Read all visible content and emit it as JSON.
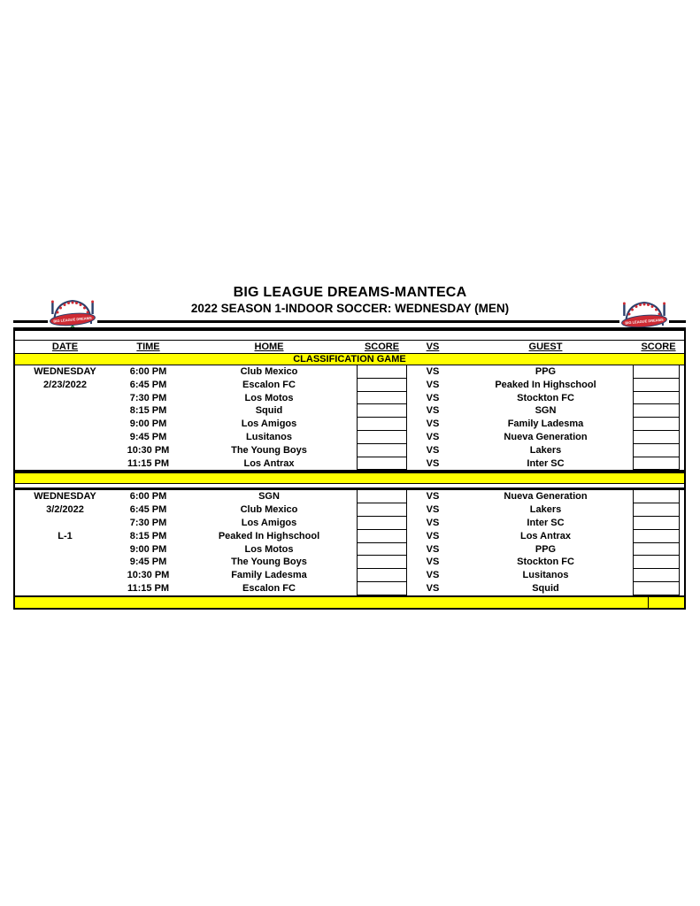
{
  "page": {
    "title": "BIG LEAGUE DREAMS-MANTECA",
    "subtitle": "2022 SEASON 1-INDOOR SOCCER: WEDNESDAY (MEN)"
  },
  "logo": {
    "name": "big-league-dreams-logo",
    "banner_text": "BIG LEAGUE DREAMS"
  },
  "colors": {
    "highlight_yellow": "#FFFF00",
    "border_black": "#000000",
    "logo_red": "#CE2A33",
    "logo_green": "#1E7F3C",
    "logo_navy": "#2B3F6B"
  },
  "table": {
    "columns": [
      "DATE",
      "TIME",
      "HOME",
      "SCORE",
      "VS",
      "GUEST",
      "SCORE"
    ],
    "section_label": "CLASSIFICATION GAME",
    "vs_label": "VS",
    "blocks": [
      {
        "day": "WEDNESDAY",
        "date": "2/23/2022",
        "league": "",
        "games": [
          {
            "time": "6:00 PM",
            "home": "Club Mexico",
            "home_score": "",
            "guest": "PPG",
            "guest_score": ""
          },
          {
            "time": "6:45 PM",
            "home": "Escalon FC",
            "home_score": "",
            "guest": "Peaked In Highschool",
            "guest_score": ""
          },
          {
            "time": "7:30 PM",
            "home": "Los Motos",
            "home_score": "",
            "guest": "Stockton FC",
            "guest_score": ""
          },
          {
            "time": "8:15 PM",
            "home": "Squid",
            "home_score": "",
            "guest": "SGN",
            "guest_score": ""
          },
          {
            "time": "9:00 PM",
            "home": "Los Amigos",
            "home_score": "",
            "guest": "Family Ladesma",
            "guest_score": ""
          },
          {
            "time": "9:45 PM",
            "home": "Lusitanos",
            "home_score": "",
            "guest": "Nueva Generation",
            "guest_score": ""
          },
          {
            "time": "10:30 PM",
            "home": "The Young Boys",
            "home_score": "",
            "guest": "Lakers",
            "guest_score": ""
          },
          {
            "time": "11:15 PM",
            "home": "Los Antrax",
            "home_score": "",
            "guest": "Inter SC",
            "guest_score": ""
          }
        ]
      },
      {
        "day": "WEDNESDAY",
        "date": "3/2/2022",
        "league": "L-1",
        "games": [
          {
            "time": "6:00 PM",
            "home": "SGN",
            "home_score": "",
            "guest": "Nueva Generation",
            "guest_score": ""
          },
          {
            "time": "6:45 PM",
            "home": "Club Mexico",
            "home_score": "",
            "guest": "Lakers",
            "guest_score": ""
          },
          {
            "time": "7:30 PM",
            "home": "Los Amigos",
            "home_score": "",
            "guest": "Inter SC",
            "guest_score": ""
          },
          {
            "time": "8:15 PM",
            "home": "Peaked In Highschool",
            "home_score": "",
            "guest": "Los Antrax",
            "guest_score": ""
          },
          {
            "time": "9:00 PM",
            "home": "Los Motos",
            "home_score": "",
            "guest": "PPG",
            "guest_score": ""
          },
          {
            "time": "9:45 PM",
            "home": "The Young Boys",
            "home_score": "",
            "guest": "Stockton FC",
            "guest_score": ""
          },
          {
            "time": "10:30 PM",
            "home": "Family Ladesma",
            "home_score": "",
            "guest": "Lusitanos",
            "guest_score": ""
          },
          {
            "time": "11:15 PM",
            "home": "Escalon FC",
            "home_score": "",
            "guest": "Squid",
            "guest_score": ""
          }
        ]
      }
    ]
  }
}
